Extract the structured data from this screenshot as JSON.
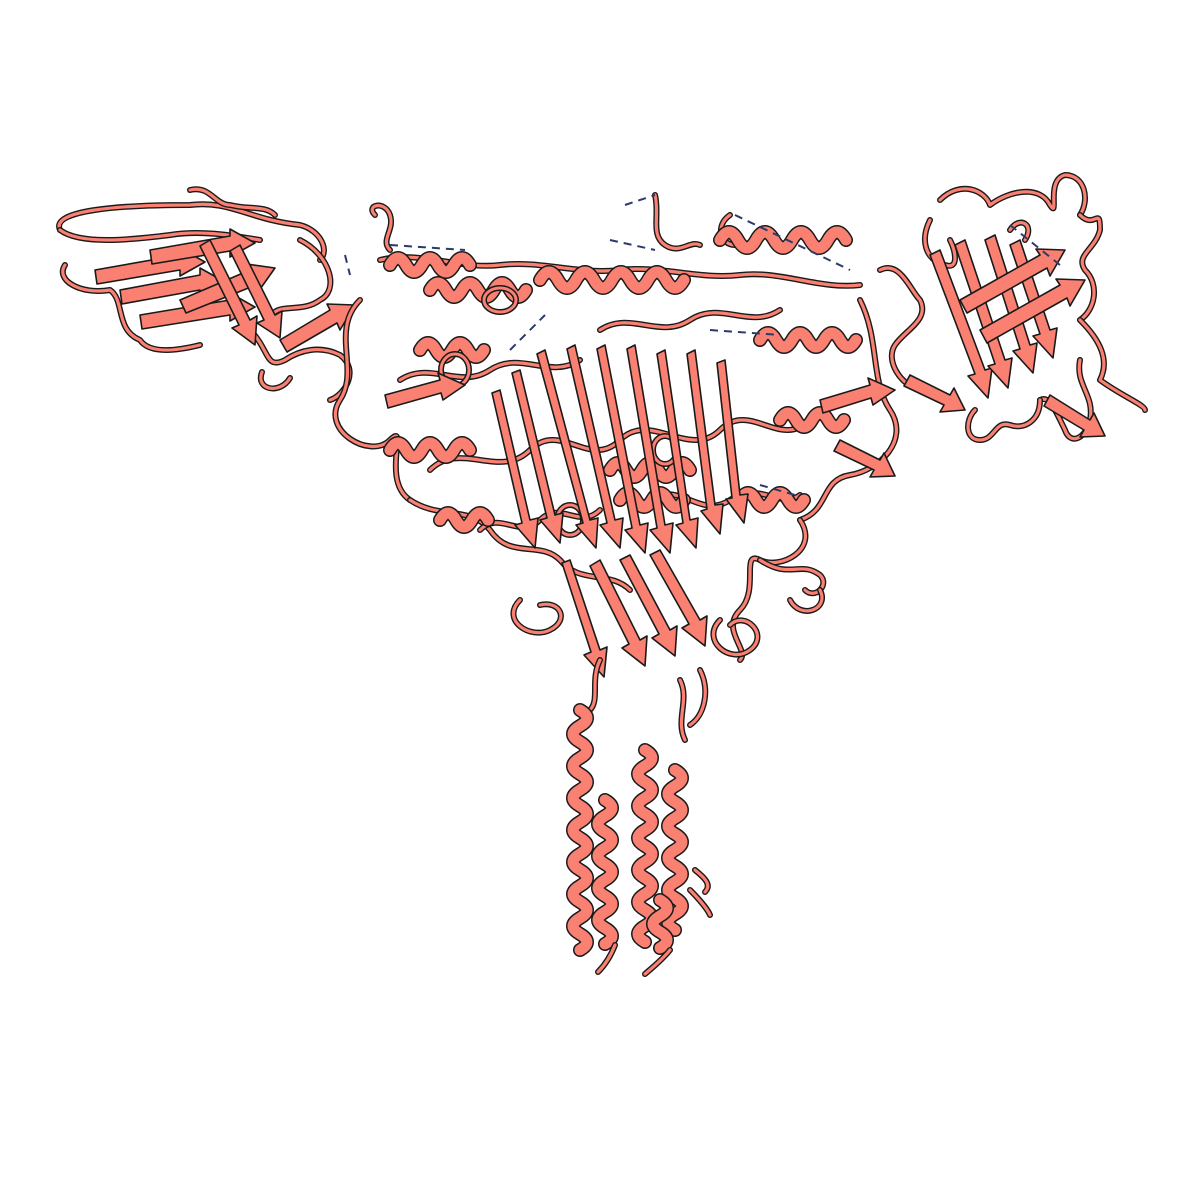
{
  "image": {
    "subject": "protein-ribbon-structure",
    "style": "cartoon",
    "colors": {
      "background": "#ffffff",
      "ribbon_fill": "#fa8072",
      "ribbon_outline": "#1a1a1a",
      "missing_segment_dash": "#2b3a6b"
    }
  }
}
